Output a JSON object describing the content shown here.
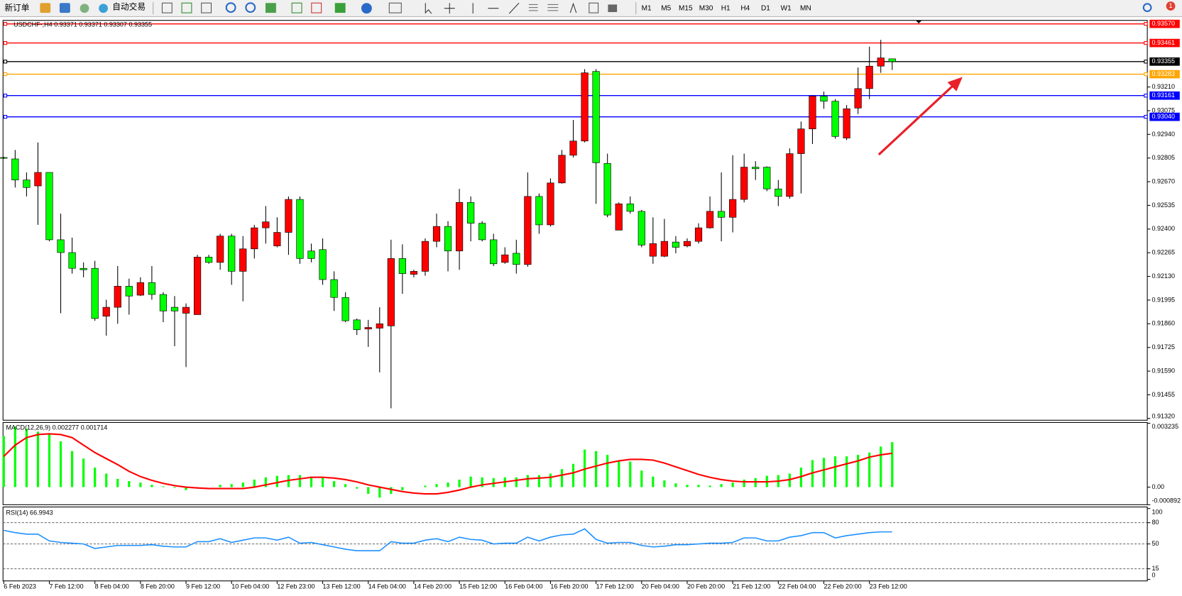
{
  "toolbar": {
    "new_order": "新订单",
    "auto_trading": "自动交易",
    "timeframes": [
      "M1",
      "M5",
      "M15",
      "M30",
      "H1",
      "H4",
      "D1",
      "W1",
      "MN"
    ],
    "notifications": 1
  },
  "chart_data": [
    {
      "type": "candlestick",
      "title": "USDCHF-,H4  0.93371 0.93371 0.93307 0.93355",
      "up_color": "#ff0000",
      "down_color": "#00ff00",
      "categories": [
        "6 Feb 2023",
        null,
        null,
        null,
        "7 Feb 12:00",
        null,
        null,
        null,
        "8 Feb 04:00",
        null,
        null,
        null,
        "8 Feb 20:00",
        null,
        null,
        null,
        "9 Feb 12:00",
        null,
        null,
        null,
        "10 Feb 04:00",
        null,
        null,
        null,
        "12 Feb 23:00",
        null,
        null,
        null,
        "13 Feb 12:00",
        null,
        null,
        null,
        "14 Feb 04:00",
        null,
        null,
        null,
        "14 Feb 20:00",
        null,
        null,
        null,
        "15 Feb 12:00",
        null,
        null,
        null,
        "16 Feb 04:00",
        null,
        null,
        null,
        "16 Feb 20:00",
        null,
        null,
        null,
        "17 Feb 12:00",
        null,
        null,
        null,
        "20 Feb 04:00",
        null,
        null,
        null,
        "20 Feb 20:00",
        null,
        null,
        null,
        "21 Feb 12:00",
        null,
        null,
        null,
        "22 Feb 04:00",
        null,
        null,
        null,
        "22 Feb 20:00",
        null,
        null,
        null,
        "23 Feb 12:00",
        null,
        null
      ],
      "open": [
        0.92808,
        0.928,
        0.9268,
        0.92646,
        0.92723,
        0.92339,
        0.92266,
        0.92176,
        0.92176,
        0.91903,
        0.91954,
        0.92074,
        0.92023,
        0.92095,
        0.92027,
        0.91954,
        0.9192,
        0.91912,
        0.9224,
        0.9221,
        0.9236,
        0.92159,
        0.92287,
        0.92407,
        0.92304,
        0.92381,
        0.92569,
        0.92275,
        0.92283,
        0.92112,
        0.9201,
        0.91882,
        0.9183,
        0.91835,
        0.91848,
        0.92232,
        0.92142,
        0.92159,
        0.9233,
        0.92415,
        0.92275,
        0.92552,
        0.92433,
        0.92339,
        0.9221,
        0.92262,
        0.92198,
        0.92586,
        0.92424,
        0.92663,
        0.92821,
        0.92902,
        0.93299,
        0.92774,
        0.92394,
        0.92544,
        0.92501,
        0.92245,
        0.92245,
        0.92326,
        0.92304,
        0.9233,
        0.92407,
        0.92501,
        0.92467,
        0.92569,
        0.92753,
        0.92753,
        0.92629,
        0.92586,
        0.9283,
        0.92971,
        0.93158,
        0.93129,
        0.92919,
        0.9309,
        0.93201,
        0.93329,
        0.93371
      ],
      "high": [
        0.92812,
        0.92851,
        0.92723,
        0.92894,
        0.92723,
        0.92488,
        0.92351,
        0.9221,
        0.92219,
        0.91997,
        0.92189,
        0.92117,
        0.92125,
        0.92189,
        0.9204,
        0.92018,
        0.91976,
        0.92253,
        0.92253,
        0.92373,
        0.92373,
        0.9236,
        0.92424,
        0.92531,
        0.92467,
        0.92586,
        0.92586,
        0.92317,
        0.92347,
        0.92159,
        0.9204,
        0.9189,
        0.91882,
        0.91954,
        0.92339,
        0.92313,
        0.92168,
        0.92347,
        0.92488,
        0.92445,
        0.92629,
        0.92586,
        0.92445,
        0.92373,
        0.92296,
        0.92339,
        0.92723,
        0.92603,
        0.92689,
        0.92851,
        0.93022,
        0.93312,
        0.93312,
        0.9283,
        0.92552,
        0.92586,
        0.92509,
        0.92467,
        0.92458,
        0.9236,
        0.92347,
        0.92433,
        0.92586,
        0.92723,
        0.92821,
        0.9283,
        0.92787,
        0.92757,
        0.9268,
        0.9286,
        0.93013,
        0.93158,
        0.93184,
        0.93141,
        0.93107,
        0.93321,
        0.9344,
        0.93479,
        0.93371
      ],
      "low": [
        0.928,
        0.92637,
        0.92586,
        0.92424,
        0.9233,
        0.9192,
        0.92146,
        0.92125,
        0.91877,
        0.91792,
        0.9186,
        0.91912,
        0.92018,
        0.91997,
        0.91869,
        0.91732,
        0.91613,
        0.91912,
        0.92202,
        0.92168,
        0.92082,
        0.91988,
        0.92232,
        0.92317,
        0.92296,
        0.92253,
        0.92202,
        0.9221,
        0.92082,
        0.91933,
        0.91869,
        0.91796,
        0.91728,
        0.91583,
        0.91378,
        0.92031,
        0.92125,
        0.92134,
        0.92296,
        0.92159,
        0.92168,
        0.9233,
        0.9233,
        0.92189,
        0.92202,
        0.92146,
        0.92185,
        0.92373,
        0.92415,
        0.92659,
        0.92808,
        0.92894,
        0.92544,
        0.92467,
        0.92394,
        0.92488,
        0.92296,
        0.92202,
        0.9224,
        0.92262,
        0.92296,
        0.92317,
        0.92403,
        0.9233,
        0.92381,
        0.92552,
        0.9268,
        0.92616,
        0.92531,
        0.92573,
        0.92603,
        0.92885,
        0.93086,
        0.92915,
        0.92907,
        0.93056,
        0.93141,
        0.93291,
        0.93307
      ],
      "close": [
        0.92804,
        0.9268,
        0.92637,
        0.92723,
        0.92339,
        0.92266,
        0.92176,
        0.92168,
        0.9189,
        0.91954,
        0.92074,
        0.92018,
        0.92095,
        0.92027,
        0.91933,
        0.91933,
        0.91954,
        0.9224,
        0.9221,
        0.9236,
        0.92159,
        0.92287,
        0.92407,
        0.92441,
        0.92381,
        0.92569,
        0.92232,
        0.92232,
        0.92112,
        0.9201,
        0.91877,
        0.91826,
        0.91839,
        0.9186,
        0.92232,
        0.92146,
        0.92159,
        0.9233,
        0.92415,
        0.92275,
        0.92552,
        0.92433,
        0.92339,
        0.92202,
        0.92253,
        0.92198,
        0.92586,
        0.92424,
        0.92663,
        0.92821,
        0.92902,
        0.93291,
        0.92778,
        0.9248,
        0.92544,
        0.92501,
        0.92309,
        0.92317,
        0.9233,
        0.92296,
        0.9233,
        0.92407,
        0.92501,
        0.92467,
        0.92569,
        0.92753,
        0.92744,
        0.92629,
        0.92586,
        0.9283,
        0.92971,
        0.93158,
        0.93129,
        0.92928,
        0.93086,
        0.93201,
        0.93329,
        0.93376,
        0.93355
      ],
      "ylim": [
        0.9131,
        0.9359
      ],
      "yticks": [
        {
          "value": 0.9321,
          "label": "0.93210"
        },
        0.93075,
        {
          "value": 0.9294,
          "label": "0.92940"
        },
        0.92805,
        {
          "value": 0.9267,
          "label": "0.92670"
        },
        0.92535,
        {
          "value": 0.924,
          "label": "0.92400"
        },
        0.92265,
        {
          "value": 0.9213,
          "label": "0.92130"
        },
        0.91995,
        {
          "value": 0.9186,
          "label": "0.91860"
        },
        0.91725,
        {
          "value": 0.9159,
          "label": "0.91590"
        },
        0.91455,
        {
          "value": 0.9132,
          "label": "0.91320"
        }
      ],
      "levels": [
        {
          "value": 0.9357,
          "label": "0.93570",
          "color": "#ff0000"
        },
        {
          "value": 0.93461,
          "label": "0.93461",
          "color": "#ff0000"
        },
        {
          "value": 0.93355,
          "label": "0.93355",
          "color": "#000000"
        },
        {
          "value": 0.93283,
          "label": "0.93283",
          "color": "#ffa500"
        },
        {
          "value": 0.93161,
          "label": "0.93161",
          "color": "#0000ff"
        },
        {
          "value": 0.9304,
          "label": "0.93040",
          "color": "#0000ff"
        }
      ]
    },
    {
      "type": "macd",
      "title": "MACD(12,26,9) 0.002277 0.001714",
      "ylim": [
        -0.000892,
        0.003235
      ],
      "yticks": [
        0.003235,
        {
          "value": 0,
          "label": "0.00"
        },
        -0.000892
      ],
      "histogram": {
        "color": "#00ff00",
        "values": [
          0.002584,
          0.003078,
          0.002964,
          0.002812,
          0.002698,
          0.002318,
          0.001824,
          0.001444,
          0.000988,
          0.000684,
          0.000418,
          0.000304,
          0.000228,
          0.000114,
          3.8e-05,
          -3.8e-05,
          -0.000152,
          -7.6e-05,
          0,
          0.000114,
          0.000152,
          0.000228,
          0.00038,
          0.000494,
          0.00057,
          0.000608,
          0.000608,
          0.000532,
          0.000456,
          0.000304,
          0.000152,
          -7.6e-05,
          -0.000342,
          -0.000532,
          -0.000342,
          -0.000152,
          0,
          7.6e-05,
          0.000152,
          0.000228,
          0.00038,
          0.000532,
          0.000494,
          0.000456,
          0.000494,
          0.000494,
          0.000608,
          0.000608,
          0.000684,
          0.000912,
          0.001178,
          0.0019,
          0.001824,
          0.001634,
          0.001292,
          0.001292,
          0.000836,
          0.000532,
          0.000342,
          0.00019,
          0.000114,
          0.000114,
          7.6e-05,
          0.000152,
          0.000228,
          0.00038,
          0.000456,
          0.00057,
          0.000608,
          0.000684,
          0.000988,
          0.001368,
          0.001482,
          0.001558,
          0.001558,
          0.001634,
          0.001748,
          0.002052,
          0.002277
        ]
      },
      "signal": {
        "color": "#ff0000",
        "values": [
          0.001558,
          0.002128,
          0.002508,
          0.00266,
          0.002698,
          0.00266,
          0.002508,
          0.002128,
          0.001748,
          0.001444,
          0.00114,
          0.000798,
          0.000532,
          0.000342,
          0.00019,
          7.6e-05,
          0,
          -3.8e-05,
          -7.6e-05,
          -7.6e-05,
          -7.6e-05,
          -7.6e-05,
          0,
          0.000114,
          0.000228,
          0.000342,
          0.000418,
          0.000494,
          0.000494,
          0.000456,
          0.00038,
          0.000266,
          0.000114,
          0,
          -0.000114,
          -0.000228,
          -0.000304,
          -0.000342,
          -0.000342,
          -0.000266,
          -0.000152,
          0,
          0.000114,
          0.00019,
          0.000266,
          0.000342,
          0.000418,
          0.000456,
          0.000494,
          0.000608,
          0.000722,
          0.000912,
          0.001064,
          0.001216,
          0.00133,
          0.001406,
          0.001406,
          0.001368,
          0.001216,
          0.001026,
          0.000836,
          0.000646,
          0.000494,
          0.00038,
          0.000304,
          0.000266,
          0.000266,
          0.000266,
          0.000304,
          0.00038,
          0.000532,
          0.000722,
          0.000874,
          0.001026,
          0.001178,
          0.00133,
          0.00152,
          0.001634,
          0.001714
        ]
      }
    },
    {
      "type": "line",
      "title": "RSI(14) 66.9943",
      "color": "#1e90ff",
      "ylim": [
        0,
        100
      ],
      "yticks": [
        100,
        80,
        50,
        15,
        0
      ],
      "values": [
        69.1,
        66.0,
        63.8,
        63.8,
        54.3,
        52.1,
        51.1,
        50.0,
        43.6,
        45.7,
        47.9,
        47.9,
        47.9,
        48.9,
        46.8,
        45.7,
        45.7,
        53.2,
        53.2,
        57.4,
        52.1,
        55.3,
        58.5,
        58.5,
        55.3,
        59.6,
        51.1,
        52.1,
        48.9,
        45.7,
        42.6,
        40.4,
        40.4,
        40.4,
        53.2,
        51.1,
        51.1,
        55.3,
        57.4,
        53.2,
        59.6,
        56.4,
        55.3,
        50.0,
        51.1,
        51.1,
        59.6,
        54.3,
        59.6,
        62.8,
        63.8,
        71.3,
        56.4,
        51.1,
        52.1,
        52.1,
        47.9,
        45.7,
        46.8,
        48.9,
        48.9,
        50.0,
        51.1,
        51.1,
        52.1,
        58.5,
        58.5,
        54.3,
        54.3,
        59.6,
        61.7,
        66.0,
        66.0,
        58.5,
        61.7,
        63.8,
        66.0,
        67.0,
        66.9943
      ]
    }
  ]
}
